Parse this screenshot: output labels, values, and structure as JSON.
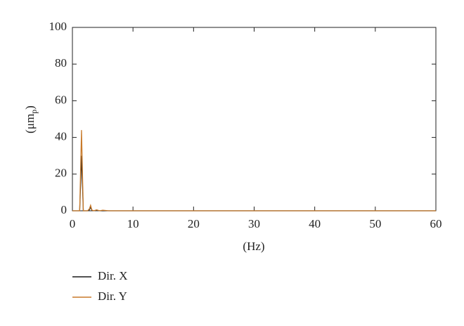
{
  "chart_data": {
    "type": "line",
    "xlabel": "(Hz)",
    "ylabel": {
      "open": "(μm",
      "sub": "p",
      "close": ")"
    },
    "x": [
      0,
      1,
      1.2,
      1.5,
      1.8,
      2,
      2.5,
      2.8,
      3,
      3.2,
      3.5,
      4,
      4.5,
      5,
      6,
      10,
      20,
      30,
      40,
      50,
      60
    ],
    "series": [
      {
        "name": "Dir. X",
        "color": "#1a1a1a",
        "values": [
          0,
          0,
          0,
          30,
          0,
          0,
          0,
          0.5,
          2,
          0.3,
          0,
          0.2,
          0,
          0,
          0,
          0,
          0,
          0,
          0,
          0,
          0
        ]
      },
      {
        "name": "Dir. Y",
        "color": "#c87a2a",
        "values": [
          0,
          0,
          0,
          44,
          0,
          0,
          0,
          1,
          3,
          0.5,
          0,
          0.5,
          0,
          0.3,
          0,
          0,
          0,
          0,
          0,
          0,
          0
        ]
      }
    ],
    "xlim": [
      0,
      60
    ],
    "xticks": [
      0,
      10,
      20,
      30,
      40,
      50,
      60
    ],
    "ylim": [
      0,
      100
    ],
    "yticks": [
      0,
      20,
      40,
      60,
      80,
      100
    ],
    "legend": "bottom-left"
  }
}
